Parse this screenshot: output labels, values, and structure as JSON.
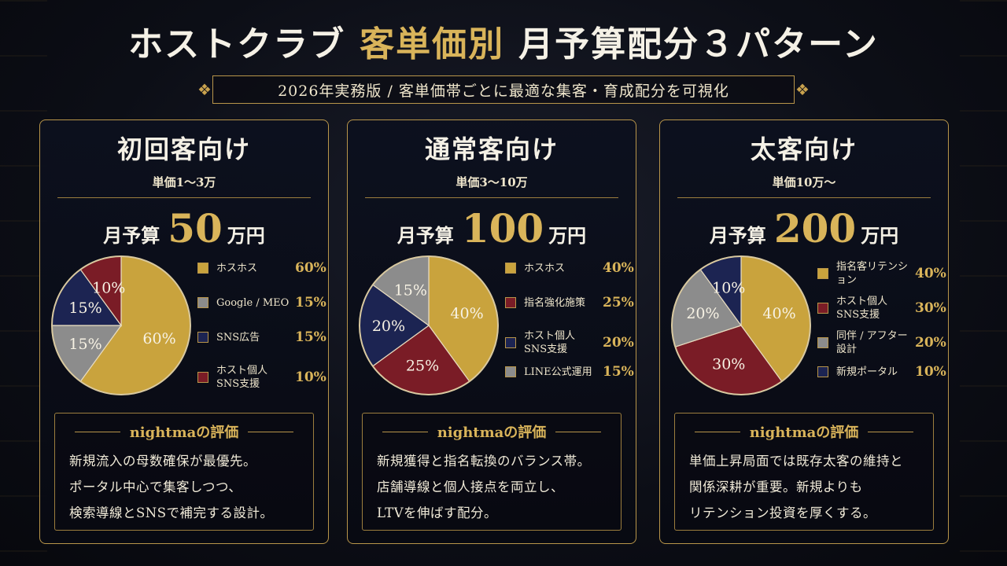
{
  "page": {
    "title_parts": [
      "ホストクラブ",
      "客単価別",
      "月予算配分３パターン"
    ],
    "subtitle": "2026年実務版 / 客単価帯ごとに最適な集客・育成配分を可視化"
  },
  "colors": {
    "gold": "#c9a33d",
    "crimson": "#7a1c26",
    "navy": "#1c2452",
    "silver": "#8c8c8c"
  },
  "chart_data": [
    {
      "type": "pie",
      "title": "初回客向け",
      "subtitle": "単価1～3万",
      "budget_label": "月予算",
      "budget_value": "50",
      "budget_unit": "万円",
      "slices": [
        {
          "name": "ホスホス",
          "value": 60,
          "label": "60%",
          "color": "gold"
        },
        {
          "name": "Google / MEO",
          "value": 15,
          "label": "15%",
          "color": "silver"
        },
        {
          "name": "SNS広告",
          "value": 15,
          "label": "15%",
          "color": "navy"
        },
        {
          "name": "ホスト個人\nSNS支援",
          "value": 10,
          "label": "10%",
          "color": "crimson"
        }
      ],
      "eval_heading": "nightmaの評価",
      "eval_lines": [
        "新規流入の母数確保が最優先。",
        "ポータル中心で集客しつつ、",
        "検索導線とSNSで補完する設計。"
      ]
    },
    {
      "type": "pie",
      "title": "通常客向け",
      "subtitle": "単価3～10万",
      "budget_label": "月予算",
      "budget_value": "100",
      "budget_unit": "万円",
      "slices": [
        {
          "name": "ホスホス",
          "value": 40,
          "label": "40%",
          "color": "gold"
        },
        {
          "name": "指名強化施策",
          "value": 25,
          "label": "25%",
          "color": "crimson"
        },
        {
          "name": "ホスト個人\nSNS支援",
          "value": 20,
          "label": "20%",
          "color": "navy"
        },
        {
          "name": "LINE公式運用",
          "value": 15,
          "label": "15%",
          "color": "silver"
        }
      ],
      "eval_heading": "nightmaの評価",
      "eval_lines": [
        "新規獲得と指名転換のバランス帯。",
        "店舗導線と個人接点を両立し、",
        "LTVを伸ばす配分。"
      ]
    },
    {
      "type": "pie",
      "title": "太客向け",
      "subtitle": "単価10万～",
      "budget_label": "月予算",
      "budget_value": "200",
      "budget_unit": "万円",
      "slices": [
        {
          "name": "指名客リテンション",
          "value": 40,
          "label": "40%",
          "color": "gold"
        },
        {
          "name": "ホスト個人\nSNS支援",
          "value": 30,
          "label": "30%",
          "color": "crimson"
        },
        {
          "name": "同伴 / アフター設計",
          "value": 20,
          "label": "20%",
          "color": "silver"
        },
        {
          "name": "新規ポータル",
          "value": 10,
          "label": "10%",
          "color": "navy"
        }
      ],
      "eval_heading": "nightmaの評価",
      "eval_lines": [
        "単価上昇局面では既存太客の維持と",
        "関係深耕が重要。新規よりも",
        "リテンション投資を厚くする。"
      ]
    }
  ]
}
